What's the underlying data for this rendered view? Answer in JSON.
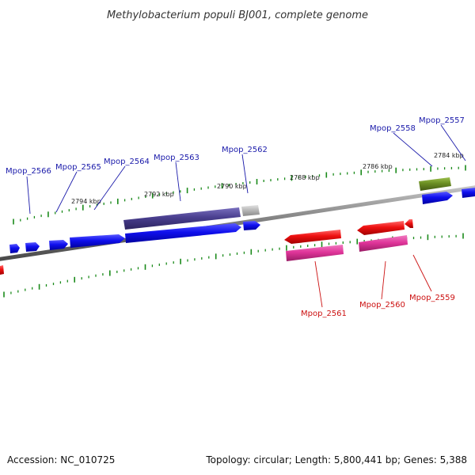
{
  "title": "Methylobacterium populi BJ001, complete genome",
  "footer": {
    "accession": "Accession: NC_010725",
    "summary": "Topology: circular; Length: 5,800,441 bp; Genes: 5,388"
  },
  "colors": {
    "backbone": "#7a7a7a",
    "tick": "#1a8a1a",
    "forward_gene": "#1010ee",
    "reverse_gene": "#ee1010",
    "reverse_cds": "#e0359a",
    "forward_feature_a": "#4a3f8f",
    "forward_feature_b": "#b8b8b8",
    "forward_feature_c": "#6b8e23",
    "label_forward": "#1a1aaa",
    "label_reverse": "#cc1111"
  },
  "kbp_labels": [
    "2794 kbp",
    "2792 kbp",
    "2790 kbp",
    "2788 kbp",
    "2786 kbp",
    "2784 kbp"
  ],
  "forward_labels": [
    "Mpop_2566",
    "Mpop_2565",
    "Mpop_2564",
    "Mpop_2563",
    "Mpop_2562",
    "Mpop_2558",
    "Mpop_2557"
  ],
  "reverse_labels": [
    "Mpop_2561",
    "Mpop_2560",
    "Mpop_2559"
  ]
}
